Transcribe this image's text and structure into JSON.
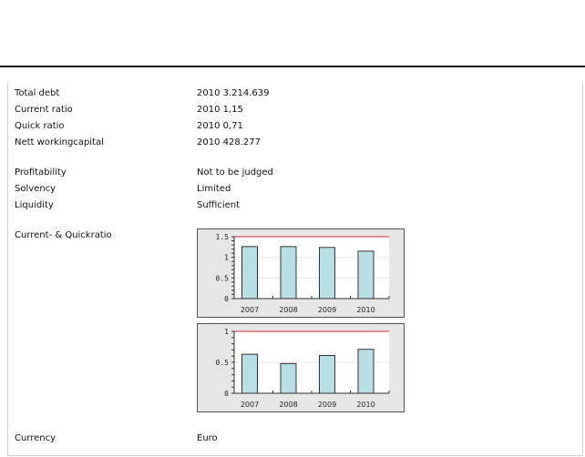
{
  "rows": [
    {
      "label": "Total debt",
      "value": "2010 3.214.639"
    },
    {
      "label": "Current ratio",
      "value": "2010 1,15"
    },
    {
      "label": "Quick ratio",
      "value": "2010 0,71"
    },
    {
      "label": "Nett workingcapital",
      "value": "2010 428.277"
    },
    {
      "label": "Profitability",
      "value": "Not to be judged"
    },
    {
      "label": "Solvency",
      "value": "Limited"
    },
    {
      "label": "Liquidity",
      "value": "Sufficient"
    },
    {
      "label": "Current- & Quickratio",
      "value": ""
    },
    {
      "label": "Currency",
      "value": "Euro"
    }
  ],
  "chart_data": [
    {
      "type": "bar",
      "categories": [
        "2007",
        "2008",
        "2009",
        "2010"
      ],
      "values": [
        1.26,
        1.26,
        1.24,
        1.15
      ],
      "ylim": [
        0,
        1.5
      ],
      "yticks": [
        "0",
        "0.5",
        "1",
        "1.5"
      ],
      "reference_line": 1.5,
      "bar_color": "#b9dfe4",
      "reference_color": "#d9534f",
      "grid": true
    },
    {
      "type": "bar",
      "categories": [
        "2007",
        "2008",
        "2009",
        "2010"
      ],
      "values": [
        0.63,
        0.48,
        0.61,
        0.71
      ],
      "ylim": [
        0,
        1
      ],
      "yticks": [
        "0",
        "0.5",
        "1"
      ],
      "reference_line": 1,
      "bar_color": "#b9dfe4",
      "reference_color": "#d9534f",
      "grid": true
    }
  ]
}
